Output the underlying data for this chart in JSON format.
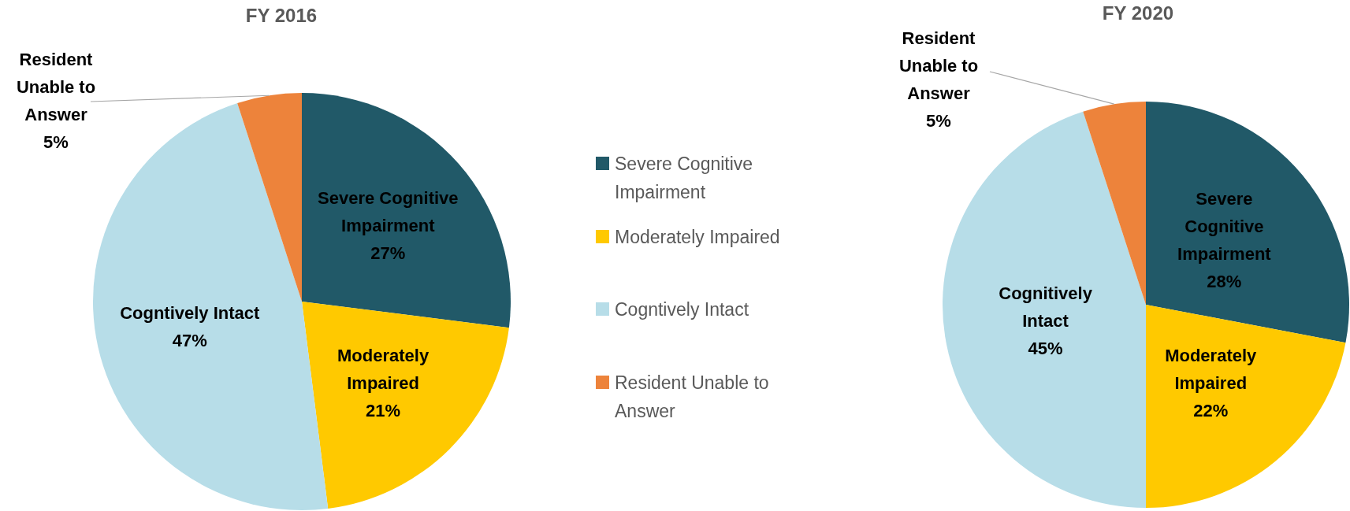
{
  "chart_data": [
    {
      "type": "pie",
      "title": "FY 2016",
      "categories": [
        "Severe Cognitive Impairment",
        "Moderately Impaired",
        "Cogntively Intact",
        "Resident Unable to Answer"
      ],
      "values": [
        27,
        21,
        47,
        5
      ],
      "value_labels": [
        "27%",
        "21%",
        "47%",
        "5%"
      ],
      "colors": [
        "#215968",
        "#ffc900",
        "#b7dde8",
        "#ed833b"
      ],
      "legend": "right"
    },
    {
      "type": "pie",
      "title": "FY 2020",
      "categories": [
        "Severe Cognitive Impairment",
        "Moderately Impaired",
        "Cognitively Intact",
        "Resident Unable to Answer"
      ],
      "values": [
        28,
        22,
        45,
        5
      ],
      "value_labels": [
        "28%",
        "22%",
        "45%",
        "5%"
      ],
      "colors": [
        "#215968",
        "#ffc900",
        "#b7dde8",
        "#ed833b"
      ]
    }
  ]
}
